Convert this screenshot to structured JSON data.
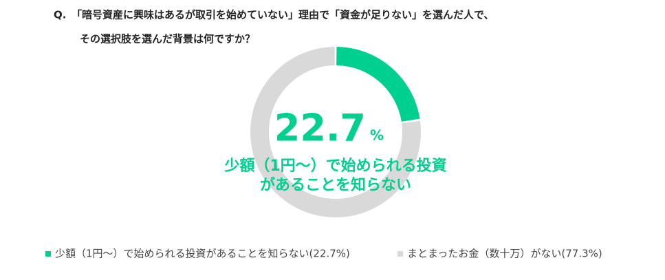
{
  "chart_data": {
    "type": "donut",
    "title": {
      "prefix": "Q.",
      "lines": [
        "「暗号資産に興味はあるが取引を始めていない」理由で「資金が足りない」を選んだ人で、",
        "その選択肢を選んだ背景は何ですか？"
      ]
    },
    "categories": [
      "少額（1円～）で始められる投資があることを知らない(22.7%)",
      "まとまったお金（数十万）がない(77.3%)"
    ],
    "values": [
      22.7,
      77.3
    ],
    "colors": [
      "#00d08f",
      "#d9d9d9"
    ],
    "value_unit": "%",
    "center_label": [
      "少額（1円～）で始められる投資",
      "があることを知らない"
    ]
  }
}
